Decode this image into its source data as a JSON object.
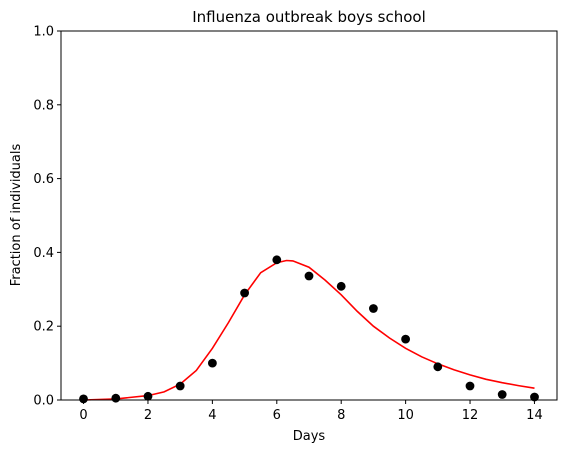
{
  "chart_data": {
    "type": "scatter",
    "title": "Influenza outbreak boys school",
    "xlabel": "Days",
    "ylabel": "Fraction of individuals",
    "xlim": [
      -0.7,
      14.7
    ],
    "ylim": [
      0,
      1
    ],
    "xticks": [
      0,
      2,
      4,
      6,
      8,
      10,
      12,
      14
    ],
    "yticks": [
      0.0,
      0.2,
      0.4,
      0.6,
      0.8,
      1.0
    ],
    "ytick_labels": [
      "0.0",
      "0.2",
      "0.4",
      "0.6",
      "0.8",
      "1.0"
    ],
    "grid": false,
    "series": [
      {
        "kind": "scatter",
        "color": "#000000",
        "x": [
          0,
          1,
          2,
          3,
          4,
          5,
          6,
          7,
          8,
          9,
          10,
          11,
          12,
          13,
          14
        ],
        "y": [
          0.003,
          0.005,
          0.01,
          0.038,
          0.1,
          0.29,
          0.38,
          0.336,
          0.308,
          0.248,
          0.165,
          0.09,
          0.038,
          0.015,
          0.008
        ]
      },
      {
        "kind": "line",
        "color": "#ff0000",
        "x": [
          0,
          1,
          2,
          2.5,
          3,
          3.5,
          4,
          4.5,
          5,
          5.5,
          6,
          6.3,
          6.5,
          7,
          7.5,
          8,
          8.5,
          9,
          9.5,
          10,
          10.5,
          11,
          11.5,
          12,
          12.5,
          13,
          13.5,
          14
        ],
        "y": [
          0.0,
          0.003,
          0.012,
          0.022,
          0.043,
          0.08,
          0.14,
          0.21,
          0.285,
          0.345,
          0.372,
          0.378,
          0.377,
          0.36,
          0.325,
          0.285,
          0.24,
          0.2,
          0.168,
          0.14,
          0.117,
          0.098,
          0.082,
          0.068,
          0.056,
          0.047,
          0.039,
          0.032
        ]
      }
    ]
  }
}
